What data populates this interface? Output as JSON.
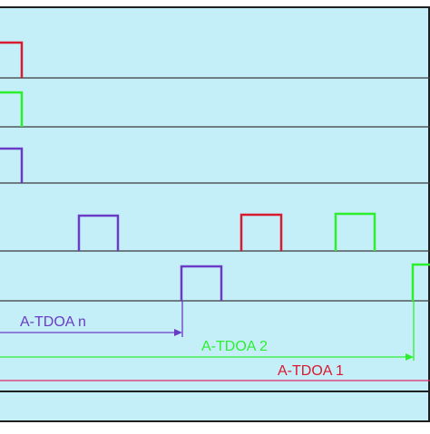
{
  "diagram": {
    "background_color": "#c4eef8",
    "frame_color": "#1f1f1f",
    "line_color": "#3a3a3a",
    "colors": {
      "red": "#d81b2e",
      "green": "#2df02d",
      "purple": "#6a3cc6",
      "magenta": "#e0286a"
    },
    "annotations": [
      {
        "id": "atdoa-n",
        "label": "A-TDOA n",
        "color": "#6a3cc6"
      },
      {
        "id": "atdoa-2",
        "label": "A-TDOA 2",
        "color": "#2df02d"
      },
      {
        "id": "atdoa-1",
        "label": "A-TDOA 1",
        "color": "#d81b2e"
      }
    ]
  }
}
